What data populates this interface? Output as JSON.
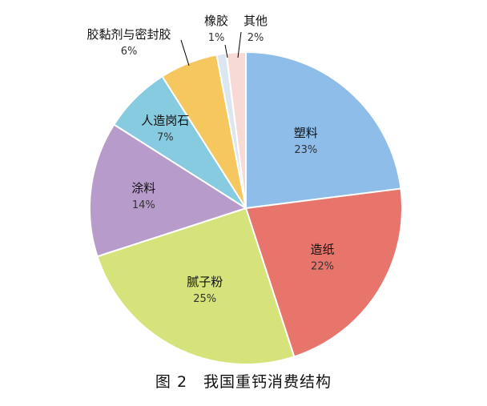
{
  "caption": "图 2　我国重钙消费结构",
  "chart_data": {
    "type": "pie",
    "title": "",
    "slices": [
      {
        "name": "塑料",
        "value": 23,
        "label": "23%",
        "color": "#8DBDE8"
      },
      {
        "name": "造纸",
        "value": 22,
        "label": "22%",
        "color": "#E8756B"
      },
      {
        "name": "腻子粉",
        "value": 25,
        "label": "25%",
        "color": "#D6E27A"
      },
      {
        "name": "涂料",
        "value": 14,
        "label": "14%",
        "color": "#B79BCB"
      },
      {
        "name": "人造岗石",
        "value": 7,
        "label": "7%",
        "color": "#86CBE0"
      },
      {
        "name": "胶黏剂与密封胶",
        "value": 6,
        "label": "6%",
        "color": "#F6C65F"
      },
      {
        "name": "橡胶",
        "value": 1,
        "label": "1%",
        "color": "#DCE6F2"
      },
      {
        "name": "其他",
        "value": 2,
        "label": "2%",
        "color": "#F7D9D6"
      }
    ]
  }
}
